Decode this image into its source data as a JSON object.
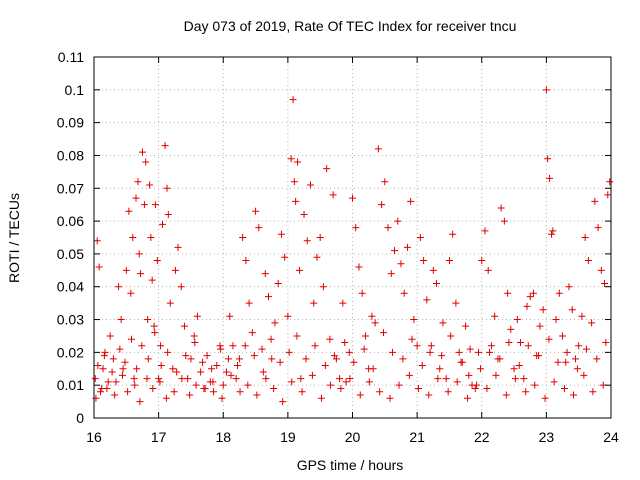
{
  "colors": {
    "marker": "#e00000",
    "grid": "#b4b4b4",
    "axis": "#000000"
  },
  "chart_data": {
    "type": "scatter",
    "title": "Day 073 of 2019, Rate Of TEC Index for receiver tncu",
    "xlabel": "GPS time / hours",
    "ylabel": "ROTI / TECUs",
    "xlim": [
      16,
      24
    ],
    "ylim": [
      0,
      0.11
    ],
    "x_ticks": [
      16,
      17,
      18,
      19,
      20,
      21,
      22,
      23,
      24
    ],
    "x_tick_labels": [
      "16",
      "17",
      "18",
      "19",
      "20",
      "21",
      "22",
      "23",
      "24"
    ],
    "y_ticks": [
      0,
      0.01,
      0.02,
      0.03,
      0.04,
      0.05,
      0.06,
      0.07,
      0.08,
      0.09,
      0.1,
      0.11
    ],
    "y_tick_labels": [
      "0",
      "0.01",
      "0.02",
      "0.03",
      "0.04",
      "0.05",
      "0.06",
      "0.07",
      "0.08",
      "0.09",
      "0.1",
      "0.11"
    ],
    "grid": true,
    "marker": "+",
    "series": [
      {
        "name": "ROTI",
        "x": [
          16.02,
          16.05,
          16.08,
          16.1,
          16.14,
          16.17,
          16.2,
          16.25,
          16.3,
          16.34,
          16.38,
          16.42,
          16.45,
          16.5,
          16.54,
          16.57,
          16.6,
          16.62,
          16.65,
          16.68,
          16.7,
          16.72,
          16.75,
          16.78,
          16.8,
          16.83,
          16.86,
          16.88,
          16.9,
          16.93,
          16.95,
          16.98,
          17.0,
          17.03,
          17.06,
          17.1,
          17.13,
          17.15,
          17.18,
          17.22,
          17.26,
          17.3,
          17.35,
          17.4,
          17.45,
          17.5,
          17.55,
          17.6,
          17.65,
          17.7,
          17.75,
          17.8,
          17.85,
          17.9,
          17.95,
          18.0,
          18.05,
          18.1,
          18.15,
          18.2,
          18.25,
          18.3,
          18.35,
          18.4,
          18.45,
          18.5,
          18.55,
          18.6,
          18.65,
          18.7,
          18.75,
          18.8,
          18.85,
          18.9,
          18.95,
          19.0,
          19.05,
          19.08,
          19.1,
          19.12,
          19.15,
          19.18,
          19.2,
          19.25,
          19.3,
          19.35,
          19.4,
          19.45,
          19.5,
          19.55,
          19.6,
          19.65,
          19.7,
          19.75,
          19.8,
          19.85,
          19.9,
          19.95,
          20.0,
          20.05,
          20.1,
          20.15,
          20.2,
          20.25,
          20.3,
          20.35,
          20.4,
          20.45,
          20.5,
          20.55,
          20.6,
          20.65,
          20.7,
          20.75,
          20.8,
          20.85,
          20.9,
          20.95,
          21.0,
          21.05,
          21.1,
          21.15,
          21.2,
          21.25,
          21.3,
          21.35,
          21.4,
          21.45,
          21.5,
          21.55,
          21.6,
          21.65,
          21.7,
          21.75,
          21.8,
          21.85,
          21.9,
          21.95,
          22.0,
          22.05,
          22.1,
          22.15,
          22.2,
          22.25,
          22.3,
          22.35,
          22.4,
          22.45,
          22.5,
          22.55,
          22.6,
          22.65,
          22.7,
          22.75,
          22.8,
          22.85,
          22.9,
          22.95,
          23.0,
          23.02,
          23.05,
          23.08,
          23.1,
          23.15,
          23.2,
          23.25,
          23.3,
          23.35,
          23.4,
          23.45,
          23.5,
          23.55,
          23.6,
          23.65,
          23.7,
          23.75,
          23.8,
          23.85,
          23.9,
          23.95,
          23.98,
          16.03,
          16.12,
          16.22,
          16.32,
          16.44,
          16.52,
          16.63,
          16.71,
          16.82,
          16.91,
          17.02,
          17.12,
          17.24,
          17.36,
          17.48,
          17.58,
          17.72,
          17.84,
          17.98,
          18.12,
          18.26,
          18.38,
          18.52,
          18.66,
          18.78,
          18.92,
          19.06,
          19.22,
          19.38,
          19.52,
          19.66,
          19.82,
          19.96,
          20.12,
          20.26,
          20.42,
          20.58,
          20.72,
          20.88,
          21.02,
          21.18,
          21.32,
          21.48,
          21.62,
          21.78,
          21.92,
          22.08,
          22.22,
          22.38,
          22.52,
          22.68,
          22.82,
          22.98,
          23.12,
          23.28,
          23.42,
          23.58,
          23.72,
          23.88,
          16.06,
          16.16,
          16.28,
          16.4,
          16.48,
          16.58,
          16.66,
          16.74,
          16.84,
          16.94,
          17.04,
          17.14,
          17.28,
          17.42,
          17.56,
          17.68,
          17.82,
          17.96,
          18.08,
          18.22,
          18.34,
          18.48,
          18.62,
          18.74,
          18.88,
          19.02,
          19.14,
          19.28,
          19.42,
          19.58,
          19.72,
          19.88,
          20.02,
          20.18,
          20.32,
          20.48,
          20.62,
          20.78,
          20.92,
          21.08,
          21.22,
          21.38,
          21.52,
          21.68,
          21.82,
          21.98,
          22.12,
          22.28,
          22.42,
          22.58,
          22.72,
          22.88,
          23.04,
          23.18,
          23.32,
          23.48,
          23.62,
          23.78,
          23.92
        ],
        "y": [
          0.012,
          0.054,
          0.046,
          0.008,
          0.015,
          0.02,
          0.009,
          0.025,
          0.018,
          0.011,
          0.04,
          0.03,
          0.015,
          0.045,
          0.063,
          0.038,
          0.055,
          0.012,
          0.067,
          0.072,
          0.05,
          0.044,
          0.081,
          0.065,
          0.078,
          0.03,
          0.071,
          0.055,
          0.042,
          0.028,
          0.065,
          0.048,
          0.012,
          0.022,
          0.059,
          0.083,
          0.07,
          0.062,
          0.035,
          0.015,
          0.045,
          0.052,
          0.04,
          0.028,
          0.012,
          0.018,
          0.025,
          0.031,
          0.014,
          0.009,
          0.019,
          0.011,
          0.008,
          0.016,
          0.022,
          0.01,
          0.014,
          0.031,
          0.022,
          0.012,
          0.018,
          0.055,
          0.048,
          0.035,
          0.026,
          0.063,
          0.058,
          0.021,
          0.044,
          0.037,
          0.018,
          0.029,
          0.041,
          0.056,
          0.049,
          0.031,
          0.079,
          0.097,
          0.072,
          0.066,
          0.078,
          0.045,
          0.012,
          0.062,
          0.054,
          0.071,
          0.035,
          0.049,
          0.055,
          0.04,
          0.076,
          0.024,
          0.068,
          0.018,
          0.012,
          0.035,
          0.011,
          0.02,
          0.067,
          0.058,
          0.046,
          0.038,
          0.025,
          0.015,
          0.031,
          0.029,
          0.082,
          0.065,
          0.072,
          0.058,
          0.044,
          0.051,
          0.06,
          0.047,
          0.038,
          0.052,
          0.066,
          0.03,
          0.022,
          0.055,
          0.048,
          0.036,
          0.02,
          0.045,
          0.041,
          0.015,
          0.029,
          0.012,
          0.048,
          0.056,
          0.035,
          0.02,
          0.017,
          0.028,
          0.013,
          0.01,
          0.009,
          0.02,
          0.048,
          0.057,
          0.045,
          0.022,
          0.031,
          0.018,
          0.064,
          0.06,
          0.038,
          0.027,
          0.015,
          0.03,
          0.023,
          0.012,
          0.034,
          0.037,
          0.038,
          0.019,
          0.028,
          0.033,
          0.1,
          0.079,
          0.073,
          0.056,
          0.057,
          0.03,
          0.038,
          0.025,
          0.017,
          0.04,
          0.033,
          0.018,
          0.022,
          0.031,
          0.055,
          0.048,
          0.029,
          0.066,
          0.058,
          0.045,
          0.041,
          0.068,
          0.072,
          0.006,
          0.009,
          0.011,
          0.007,
          0.013,
          0.008,
          0.01,
          0.005,
          0.012,
          0.009,
          0.011,
          0.006,
          0.008,
          0.012,
          0.007,
          0.01,
          0.009,
          0.011,
          0.006,
          0.013,
          0.008,
          0.01,
          0.007,
          0.012,
          0.009,
          0.005,
          0.011,
          0.008,
          0.013,
          0.006,
          0.01,
          0.009,
          0.012,
          0.007,
          0.011,
          0.008,
          0.006,
          0.01,
          0.013,
          0.009,
          0.007,
          0.012,
          0.008,
          0.011,
          0.006,
          0.01,
          0.009,
          0.013,
          0.007,
          0.012,
          0.008,
          0.01,
          0.006,
          0.011,
          0.009,
          0.007,
          0.013,
          0.008,
          0.01,
          0.016,
          0.019,
          0.014,
          0.021,
          0.017,
          0.024,
          0.015,
          0.022,
          0.018,
          0.026,
          0.016,
          0.02,
          0.014,
          0.019,
          0.023,
          0.017,
          0.015,
          0.021,
          0.018,
          0.016,
          0.022,
          0.019,
          0.014,
          0.024,
          0.017,
          0.02,
          0.025,
          0.018,
          0.022,
          0.016,
          0.019,
          0.023,
          0.017,
          0.021,
          0.015,
          0.026,
          0.02,
          0.018,
          0.024,
          0.016,
          0.022,
          0.019,
          0.025,
          0.017,
          0.021,
          0.015,
          0.02,
          0.018,
          0.023,
          0.016,
          0.022,
          0.019,
          0.024,
          0.017,
          0.02,
          0.015,
          0.021,
          0.018,
          0.023
        ]
      }
    ]
  }
}
